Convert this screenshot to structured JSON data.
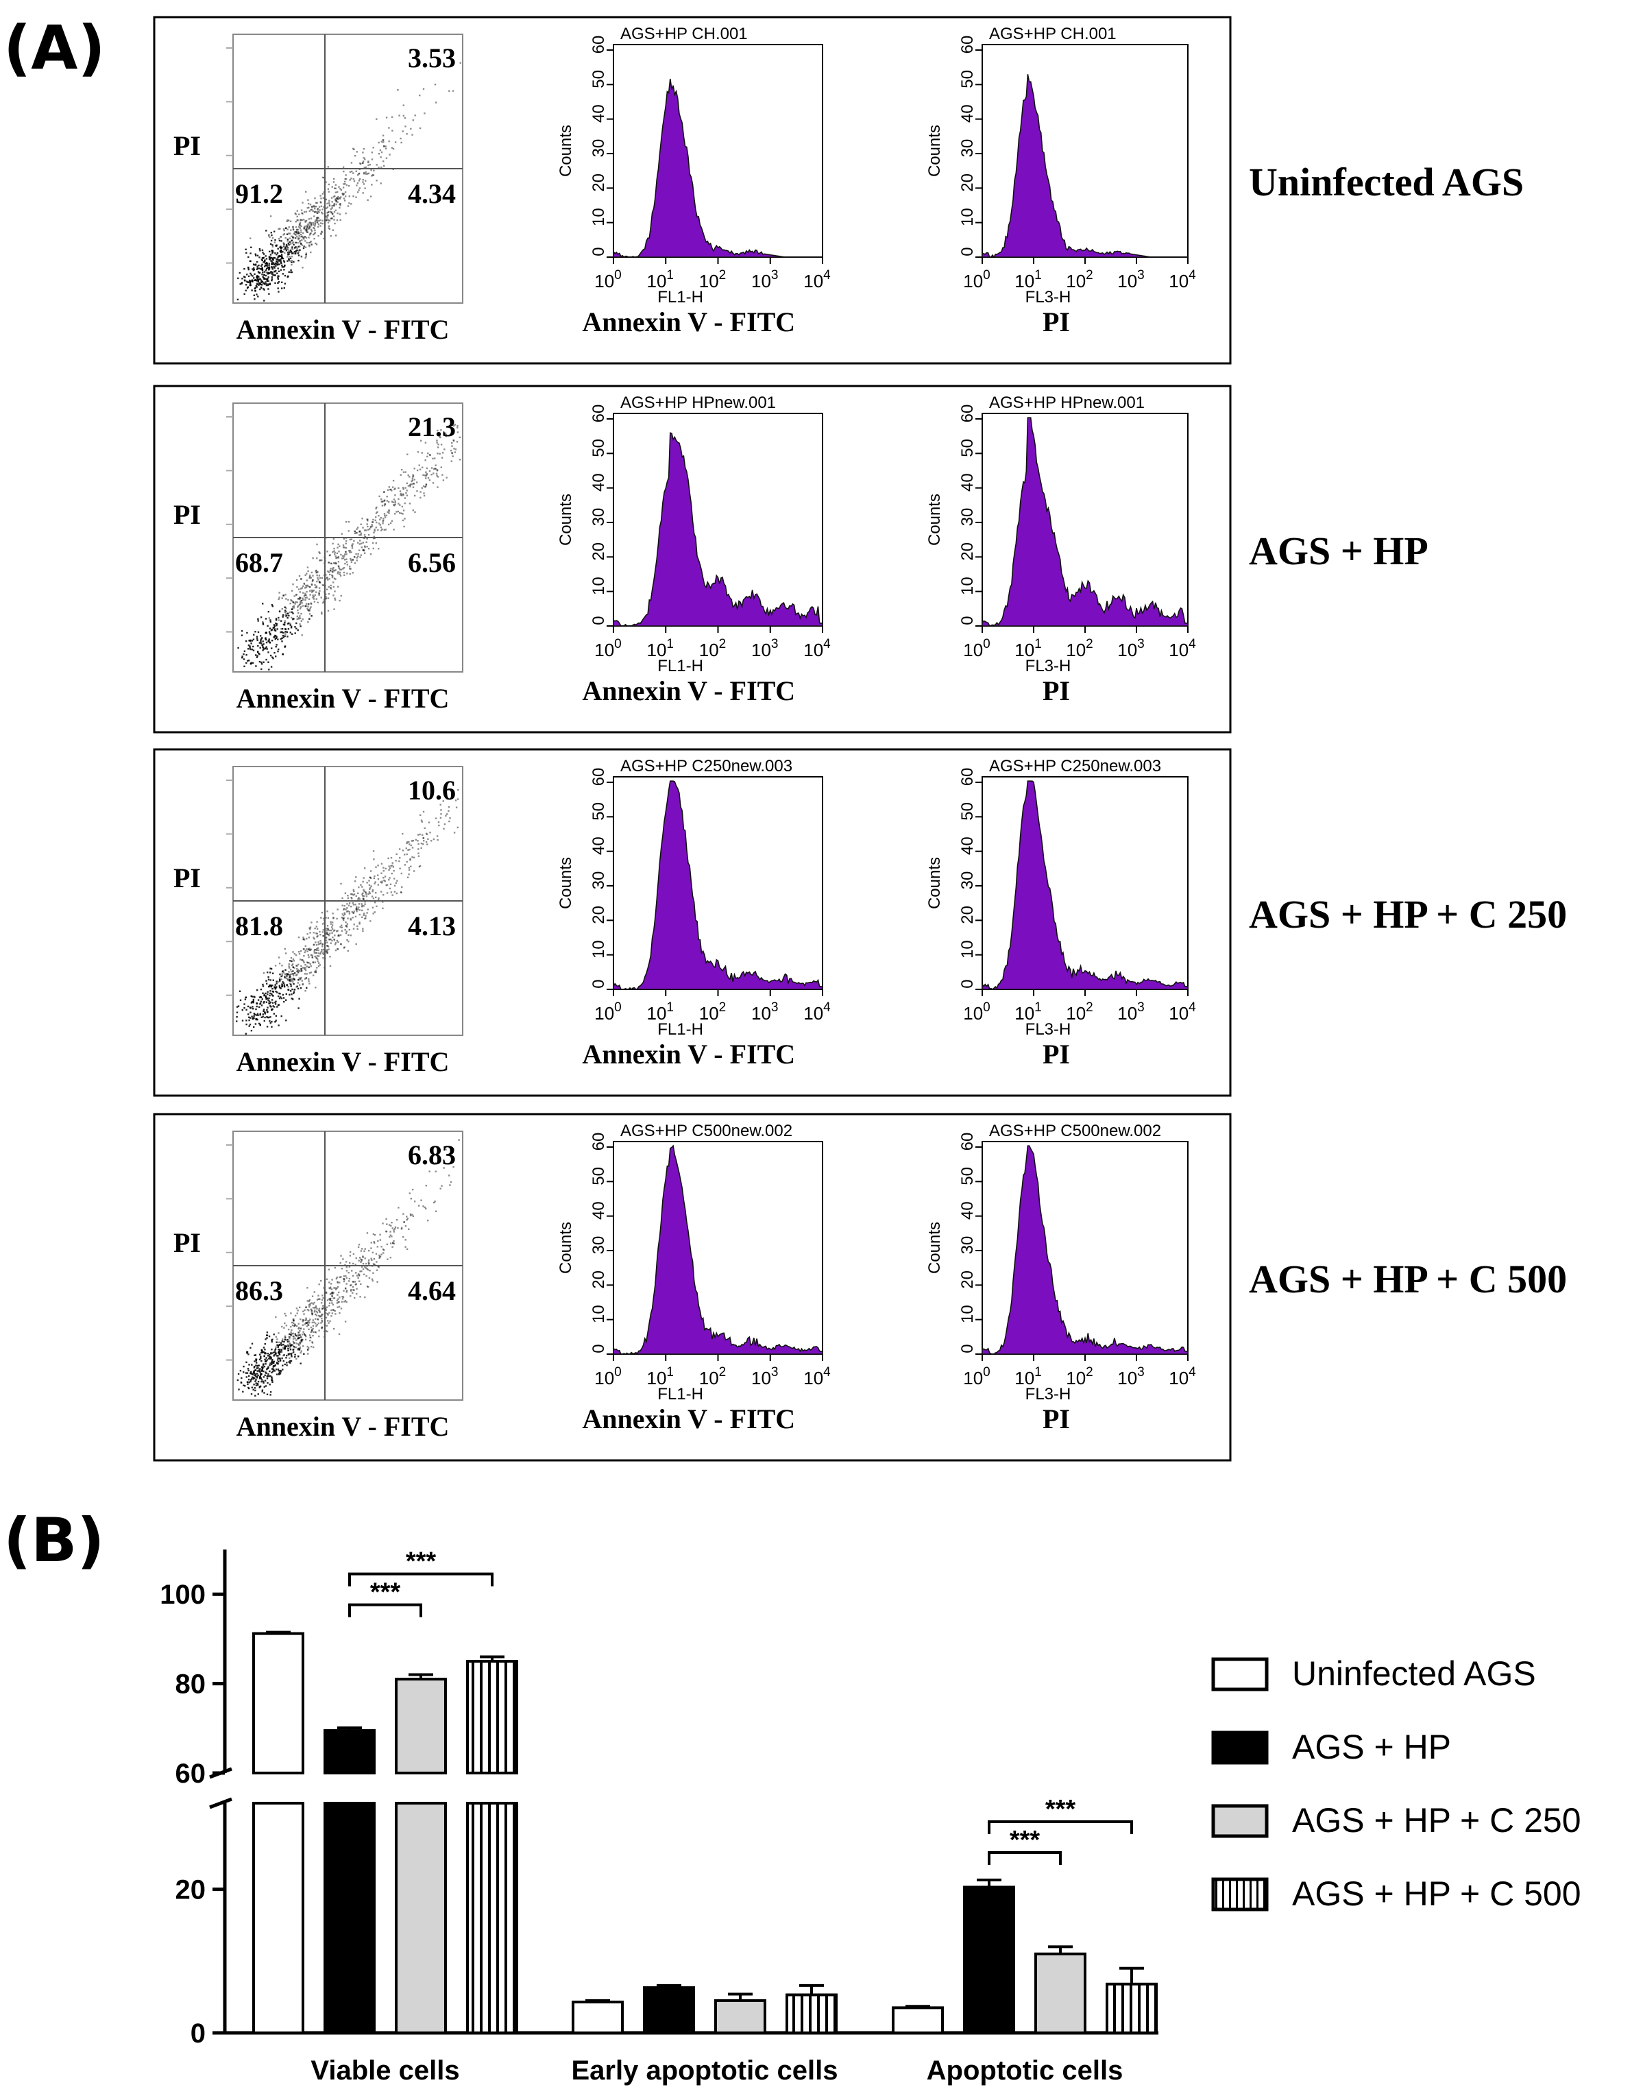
{
  "panel_a_label": "(A)",
  "panel_b_label": "(B)",
  "panel_a": {
    "rows": [
      {
        "condition": "Uninfected AGS",
        "quadrants": {
          "upper_right": "3.53",
          "lower_left": "91.2",
          "lower_right": "4.34"
        },
        "scatter_ylabel": "PI",
        "scatter_xlabel": "Annexin V - FITC",
        "hist1_title": "AGS+HP CH.001",
        "hist2_title": "AGS+HP CH.001",
        "hist1_xlabel": "Annexin V - FITC",
        "hist2_xlabel": "PI"
      },
      {
        "condition": "AGS + HP",
        "quadrants": {
          "upper_right": "21.3",
          "lower_left": "68.7",
          "lower_right": "6.56"
        },
        "scatter_ylabel": "PI",
        "scatter_xlabel": "Annexin V - FITC",
        "hist1_title": "AGS+HP HPnew.001",
        "hist2_title": "AGS+HP HPnew.001",
        "hist1_xlabel": "Annexin V - FITC",
        "hist2_xlabel": "PI"
      },
      {
        "condition": "AGS + HP + C 250",
        "quadrants": {
          "upper_right": "10.6",
          "lower_left": "81.8",
          "lower_right": "4.13"
        },
        "scatter_ylabel": "PI",
        "scatter_xlabel": "Annexin V - FITC",
        "hist1_title": "AGS+HP C250new.003",
        "hist2_title": "AGS+HP C250new.003",
        "hist1_xlabel": "Annexin V - FITC",
        "hist2_xlabel": "PI"
      },
      {
        "condition": "AGS + HP + C 500",
        "quadrants": {
          "upper_right": "6.83",
          "lower_left": "86.3",
          "lower_right": "4.64"
        },
        "scatter_ylabel": "PI",
        "scatter_xlabel": "Annexin V - FITC",
        "hist1_title": "AGS+HP C500new.002",
        "hist2_title": "AGS+HP C500new.002",
        "hist1_xlabel": "Annexin V - FITC",
        "hist2_xlabel": "PI"
      }
    ],
    "hist_ylabel": "Counts",
    "hist_yticks": [
      "0",
      "10",
      "20",
      "30",
      "40",
      "50",
      "60"
    ],
    "hist_xticks": [
      "0",
      "1",
      "2",
      "3",
      "4"
    ],
    "hist_xtick_base": "10",
    "hist1_axis": "FL1-H",
    "hist2_axis": "FL3-H",
    "histogram_color": "#7B0FC0"
  },
  "chart_data": {
    "type": "bar",
    "categories": [
      "Viable cells",
      "Early apoptotic cells",
      "Apoptotic cells"
    ],
    "series": [
      {
        "name": "Uninfected AGS",
        "fill": "white",
        "values": [
          91.2,
          4.3,
          3.5
        ],
        "errors": [
          0.3,
          0.2,
          0.2
        ]
      },
      {
        "name": "AGS + HP",
        "fill": "black",
        "values": [
          69.5,
          6.3,
          20.3
        ],
        "errors": [
          0.6,
          0.3,
          1.0
        ]
      },
      {
        "name": "AGS + HP + C 250",
        "fill": "lightgray",
        "values": [
          81.0,
          4.5,
          11.0
        ],
        "errors": [
          1.0,
          0.9,
          1.0
        ]
      },
      {
        "name": "AGS + HP + C 500",
        "fill": "stripes",
        "values": [
          85.0,
          5.3,
          6.8
        ],
        "errors": [
          1.0,
          1.3,
          2.2
        ]
      }
    ],
    "yaxis": {
      "segments": [
        [
          0,
          32
        ],
        [
          60,
          110
        ]
      ],
      "ticks": [
        0,
        20,
        60,
        80,
        100
      ]
    },
    "significance": [
      {
        "category": "Viable cells",
        "from": "AGS + HP",
        "to": "AGS + HP + C 250",
        "label": "***"
      },
      {
        "category": "Viable cells",
        "from": "AGS + HP",
        "to": "AGS + HP + C 500",
        "label": "***"
      },
      {
        "category": "Apoptotic cells",
        "from": "AGS + HP",
        "to": "AGS + HP + C 250",
        "label": "***"
      },
      {
        "category": "Apoptotic cells",
        "from": "AGS + HP",
        "to": "AGS + HP + C 500",
        "label": "***"
      }
    ],
    "legend_position": "right"
  }
}
